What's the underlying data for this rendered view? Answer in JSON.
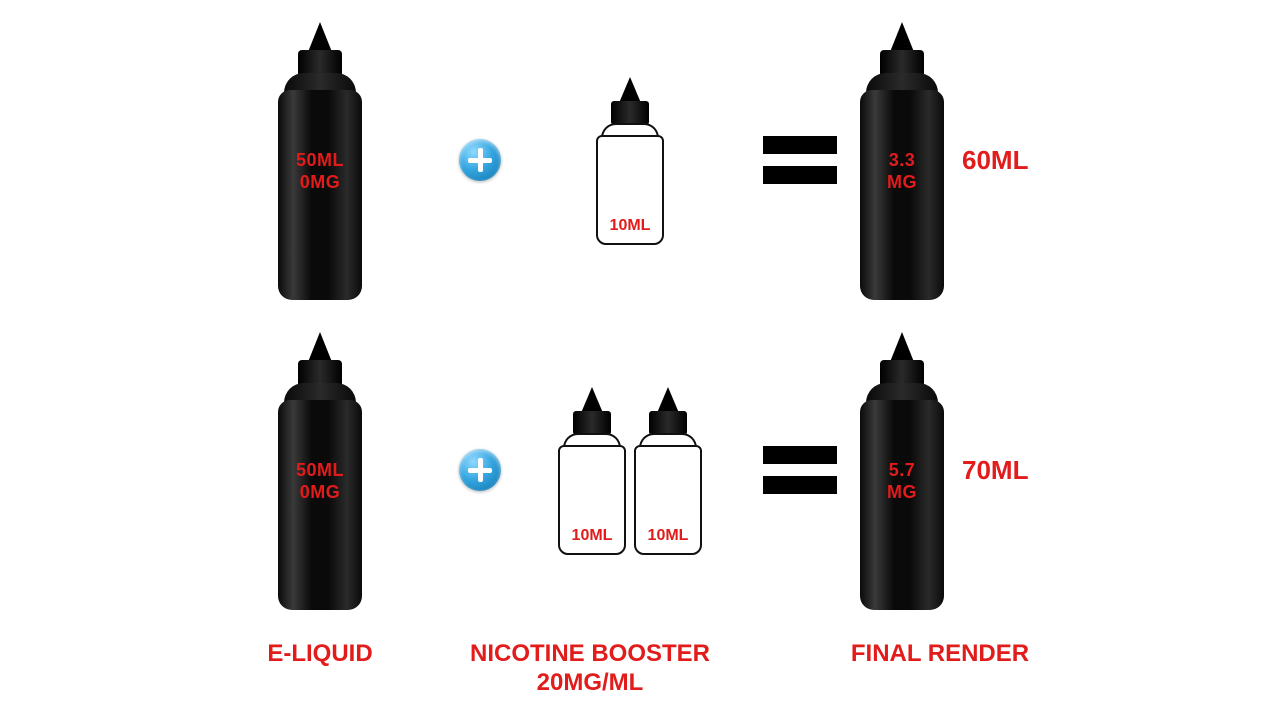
{
  "colors": {
    "text_red": "#e21b1b",
    "background": "#ffffff",
    "bottle_black": "#0a0a0a",
    "plus_gradient_light": "#8fd9ff",
    "plus_gradient_dark": "#0b6fa8",
    "equals_black": "#000000"
  },
  "typography": {
    "family": "Impact",
    "bottle_label_fontsize": 18,
    "small_bottle_label_fontsize": 16,
    "result_fontsize": 26,
    "footer_fontsize": 24
  },
  "row1": {
    "eliquid": {
      "line1": "50ML",
      "line2": "0MG"
    },
    "boosters": [
      {
        "label": "10ML"
      }
    ],
    "result_bottle": {
      "line1": "3.3",
      "line2": "MG"
    },
    "result_total": "60ML"
  },
  "row2": {
    "eliquid": {
      "line1": "50ML",
      "line2": "0MG"
    },
    "boosters": [
      {
        "label": "10ML"
      },
      {
        "label": "10ML"
      }
    ],
    "result_bottle": {
      "line1": "5.7",
      "line2": "MG"
    },
    "result_total": "70ML"
  },
  "footer": {
    "col1": "E-LIQUID",
    "col2_line1": "NICOTINE BOOSTER",
    "col2_line2": "20MG/ML",
    "col3": "FINAL RENDER"
  }
}
